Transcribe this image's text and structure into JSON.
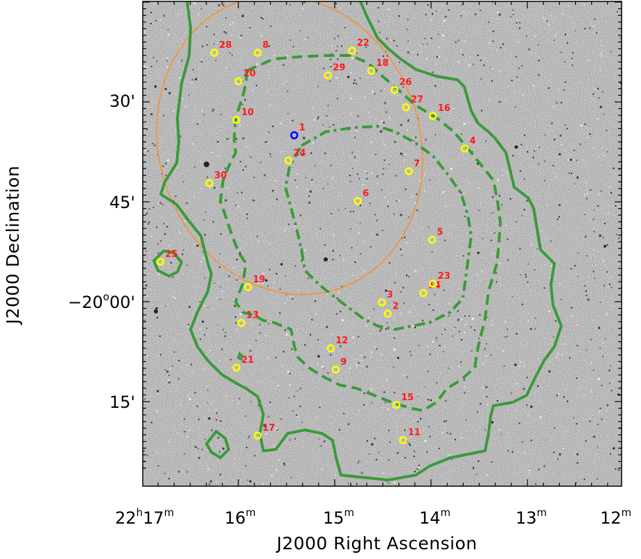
{
  "x_axis": {
    "title": "J2000 Right Ascension",
    "ticks": [
      {
        "h": "22",
        "hs": "h",
        "m": "17",
        "ms": "m"
      },
      {
        "h": "",
        "hs": "",
        "m": "16",
        "ms": "m"
      },
      {
        "h": "",
        "hs": "",
        "m": "15",
        "ms": "m"
      },
      {
        "h": "",
        "hs": "",
        "m": "14",
        "ms": "m"
      },
      {
        "h": "",
        "hs": "",
        "m": "13",
        "ms": "m"
      },
      {
        "h": "",
        "hs": "",
        "m": "12",
        "ms": "m"
      }
    ]
  },
  "y_axis": {
    "title": "J2000 Declination",
    "ticks": [
      {
        "main": "30'",
        "sup": ""
      },
      {
        "main": "45'",
        "sup": ""
      },
      {
        "main": "−20",
        "sup": "o",
        "rest": "00'"
      },
      {
        "main": "15'",
        "sup": ""
      }
    ]
  },
  "colors": {
    "background": "#c9c9c9",
    "contour": "#3a9a3a",
    "ellipse": "#ff8c1a",
    "marker": "#ffff00",
    "highlight": "#0000ff",
    "label": "#ff1a1a"
  },
  "sources": [
    {
      "id": "1",
      "ra_min": 15.42,
      "dec_arcmin": 35.0,
      "highlight": true
    },
    {
      "id": "2",
      "ra_min": 14.45,
      "dec_arcmin": 61.8
    },
    {
      "id": "3",
      "ra_min": 14.51,
      "dec_arcmin": 60.1
    },
    {
      "id": "4",
      "ra_min": 13.65,
      "dec_arcmin": 37.0
    },
    {
      "id": "5",
      "ra_min": 13.99,
      "dec_arcmin": 50.7
    },
    {
      "id": "6",
      "ra_min": 14.76,
      "dec_arcmin": 44.9
    },
    {
      "id": "7",
      "ra_min": 14.23,
      "dec_arcmin": 40.4
    },
    {
      "id": "8",
      "ra_min": 15.8,
      "dec_arcmin": 22.6
    },
    {
      "id": "9",
      "ra_min": 14.99,
      "dec_arcmin": 70.2
    },
    {
      "id": "10",
      "ra_min": 16.02,
      "dec_arcmin": 32.7
    },
    {
      "id": "11",
      "ra_min": 14.29,
      "dec_arcmin": 80.8
    },
    {
      "id": "12",
      "ra_min": 15.04,
      "dec_arcmin": 67.0
    },
    {
      "id": "13",
      "ra_min": 15.97,
      "dec_arcmin": 63.2
    },
    {
      "id": "14",
      "ra_min": 14.08,
      "dec_arcmin": 58.7
    },
    {
      "id": "15",
      "ra_min": 14.36,
      "dec_arcmin": 75.5
    },
    {
      "id": "16",
      "ra_min": 13.98,
      "dec_arcmin": 32.1
    },
    {
      "id": "17",
      "ra_min": 15.8,
      "dec_arcmin": 80.1
    },
    {
      "id": "18",
      "ra_min": 14.62,
      "dec_arcmin": 25.3
    },
    {
      "id": "19",
      "ra_min": 15.9,
      "dec_arcmin": 57.8
    },
    {
      "id": "20",
      "ra_min": 16.0,
      "dec_arcmin": 26.9
    },
    {
      "id": "21",
      "ra_min": 16.02,
      "dec_arcmin": 69.9
    },
    {
      "id": "22",
      "ra_min": 14.82,
      "dec_arcmin": 22.3
    },
    {
      "id": "23",
      "ra_min": 13.98,
      "dec_arcmin": 57.3
    },
    {
      "id": "24",
      "ra_min": 15.48,
      "dec_arcmin": 38.8
    },
    {
      "id": "25",
      "ra_min": 16.81,
      "dec_arcmin": 54.0
    },
    {
      "id": "26",
      "ra_min": 14.38,
      "dec_arcmin": 28.2
    },
    {
      "id": "27",
      "ra_min": 14.26,
      "dec_arcmin": 30.8
    },
    {
      "id": "28",
      "ra_min": 16.25,
      "dec_arcmin": 22.6
    },
    {
      "id": "29",
      "ra_min": 15.07,
      "dec_arcmin": 26.0
    },
    {
      "id": "30",
      "ra_min": 16.3,
      "dec_arcmin": 42.2
    }
  ]
}
